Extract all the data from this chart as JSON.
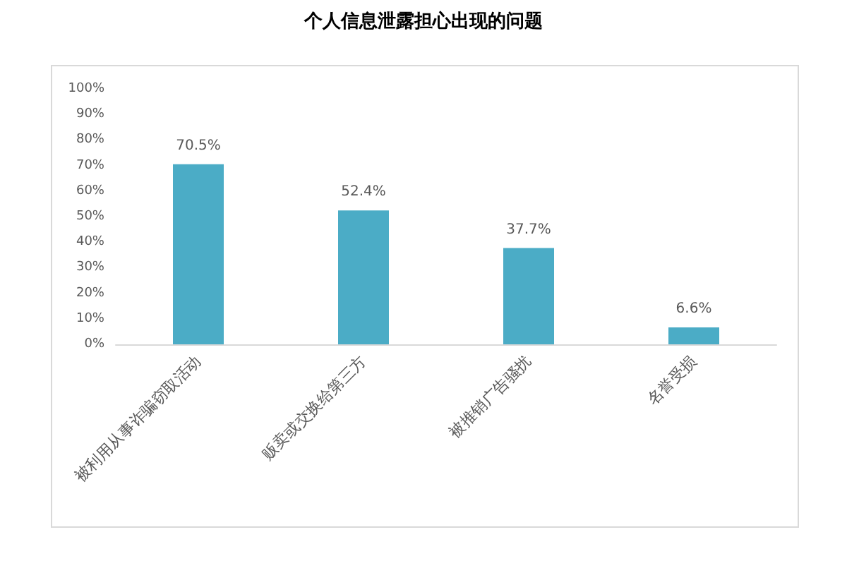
{
  "chart_data": {
    "type": "bar",
    "title": "个人信息泄露担心出现的问题",
    "categories": [
      "被利用从事诈骗窃取活动",
      "贩卖或交换给第三方",
      "被推销广告骚扰",
      "名誉受损"
    ],
    "values": [
      70.5,
      52.4,
      37.7,
      6.6
    ],
    "value_labels": [
      "70.5%",
      "52.4%",
      "37.7%",
      "6.6%"
    ],
    "color": "#4bacc6",
    "ylim": [
      0,
      100
    ],
    "yticks": [
      {
        "value": 0,
        "label": "0%"
      },
      {
        "value": 10,
        "label": "10%"
      },
      {
        "value": 20,
        "label": "20%"
      },
      {
        "value": 30,
        "label": "30%"
      },
      {
        "value": 40,
        "label": "40%"
      },
      {
        "value": 50,
        "label": "50%"
      },
      {
        "value": 60,
        "label": "60%"
      },
      {
        "value": 70,
        "label": "70%"
      },
      {
        "value": 80,
        "label": "80%"
      },
      {
        "value": 90,
        "label": "90%"
      },
      {
        "value": 100,
        "label": "100%"
      }
    ],
    "grid": false
  }
}
